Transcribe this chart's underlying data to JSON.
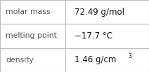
{
  "rows": [
    {
      "label": "molar mass",
      "value": "72.49 g/mol",
      "has_sup": false
    },
    {
      "label": "melting point",
      "value": "−17.7 °C",
      "has_sup": false
    },
    {
      "label": "density",
      "value_base": "1.46 g/cm",
      "value_sup": "3",
      "has_sup": true
    }
  ],
  "background_color": "#ffffff",
  "border_color": "#bbbbbb",
  "label_color": "#555555",
  "value_color": "#111111",
  "label_fontsize": 7.8,
  "value_fontsize": 8.5,
  "sup_fontsize": 5.5,
  "col_split": 0.44,
  "fig_width": 2.12,
  "fig_height": 1.03,
  "dpi": 100
}
